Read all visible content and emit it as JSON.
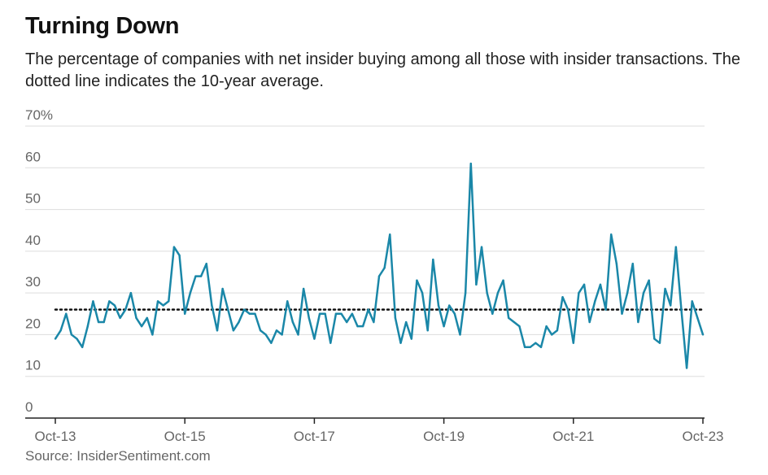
{
  "title": "Turning Down",
  "subtitle": "The percentage of companies with net insider buying among all those with insider transactions. The dotted line indicates the 10-year average.",
  "source": "Source: InsiderSentiment.com",
  "colors": {
    "line": "#1a87a8",
    "average": "#111111",
    "grid": "#dddddd",
    "axis": "#222222",
    "tick_text": "#666666"
  },
  "chart_data": {
    "type": "line",
    "title": "Turning Down",
    "xlabel": "",
    "ylabel": "",
    "ylim": [
      0,
      70
    ],
    "y_ticks": [
      0,
      10,
      20,
      30,
      40,
      50,
      60,
      70
    ],
    "y_tick_labels": [
      "0",
      "10",
      "20",
      "30",
      "40",
      "50",
      "60",
      "70%"
    ],
    "x_ticks": [
      "Oct-13",
      "Oct-15",
      "Oct-17",
      "Oct-19",
      "Oct-21",
      "Oct-23"
    ],
    "x_start": "2013-10",
    "x_end": "2023-10",
    "grid": true,
    "average": 26,
    "series": [
      {
        "values": [
          19,
          21,
          25,
          20,
          19,
          17,
          22,
          28,
          23,
          23,
          28,
          27,
          24,
          26,
          30,
          24,
          22,
          24,
          20,
          28,
          27,
          28,
          41,
          39,
          25,
          30,
          34,
          34,
          37,
          27,
          21,
          31,
          26,
          21,
          23,
          26,
          25,
          25,
          21,
          20,
          18,
          21,
          20,
          28,
          23,
          20,
          31,
          24,
          19,
          25,
          25,
          18,
          25,
          25,
          23,
          25,
          22,
          22,
          26,
          23,
          34,
          36,
          44,
          24,
          18,
          23,
          19,
          33,
          30,
          21,
          38,
          27,
          22,
          27,
          25,
          20,
          30,
          61,
          32,
          41,
          30,
          25,
          30,
          33,
          24,
          23,
          22,
          17,
          17,
          18,
          17,
          22,
          20,
          21,
          29,
          26,
          18,
          30,
          32,
          23,
          28,
          32,
          26,
          44,
          37,
          25,
          30,
          37,
          23,
          30,
          33,
          19,
          18,
          31,
          27,
          41,
          26,
          12,
          28,
          24,
          20
        ]
      }
    ]
  }
}
